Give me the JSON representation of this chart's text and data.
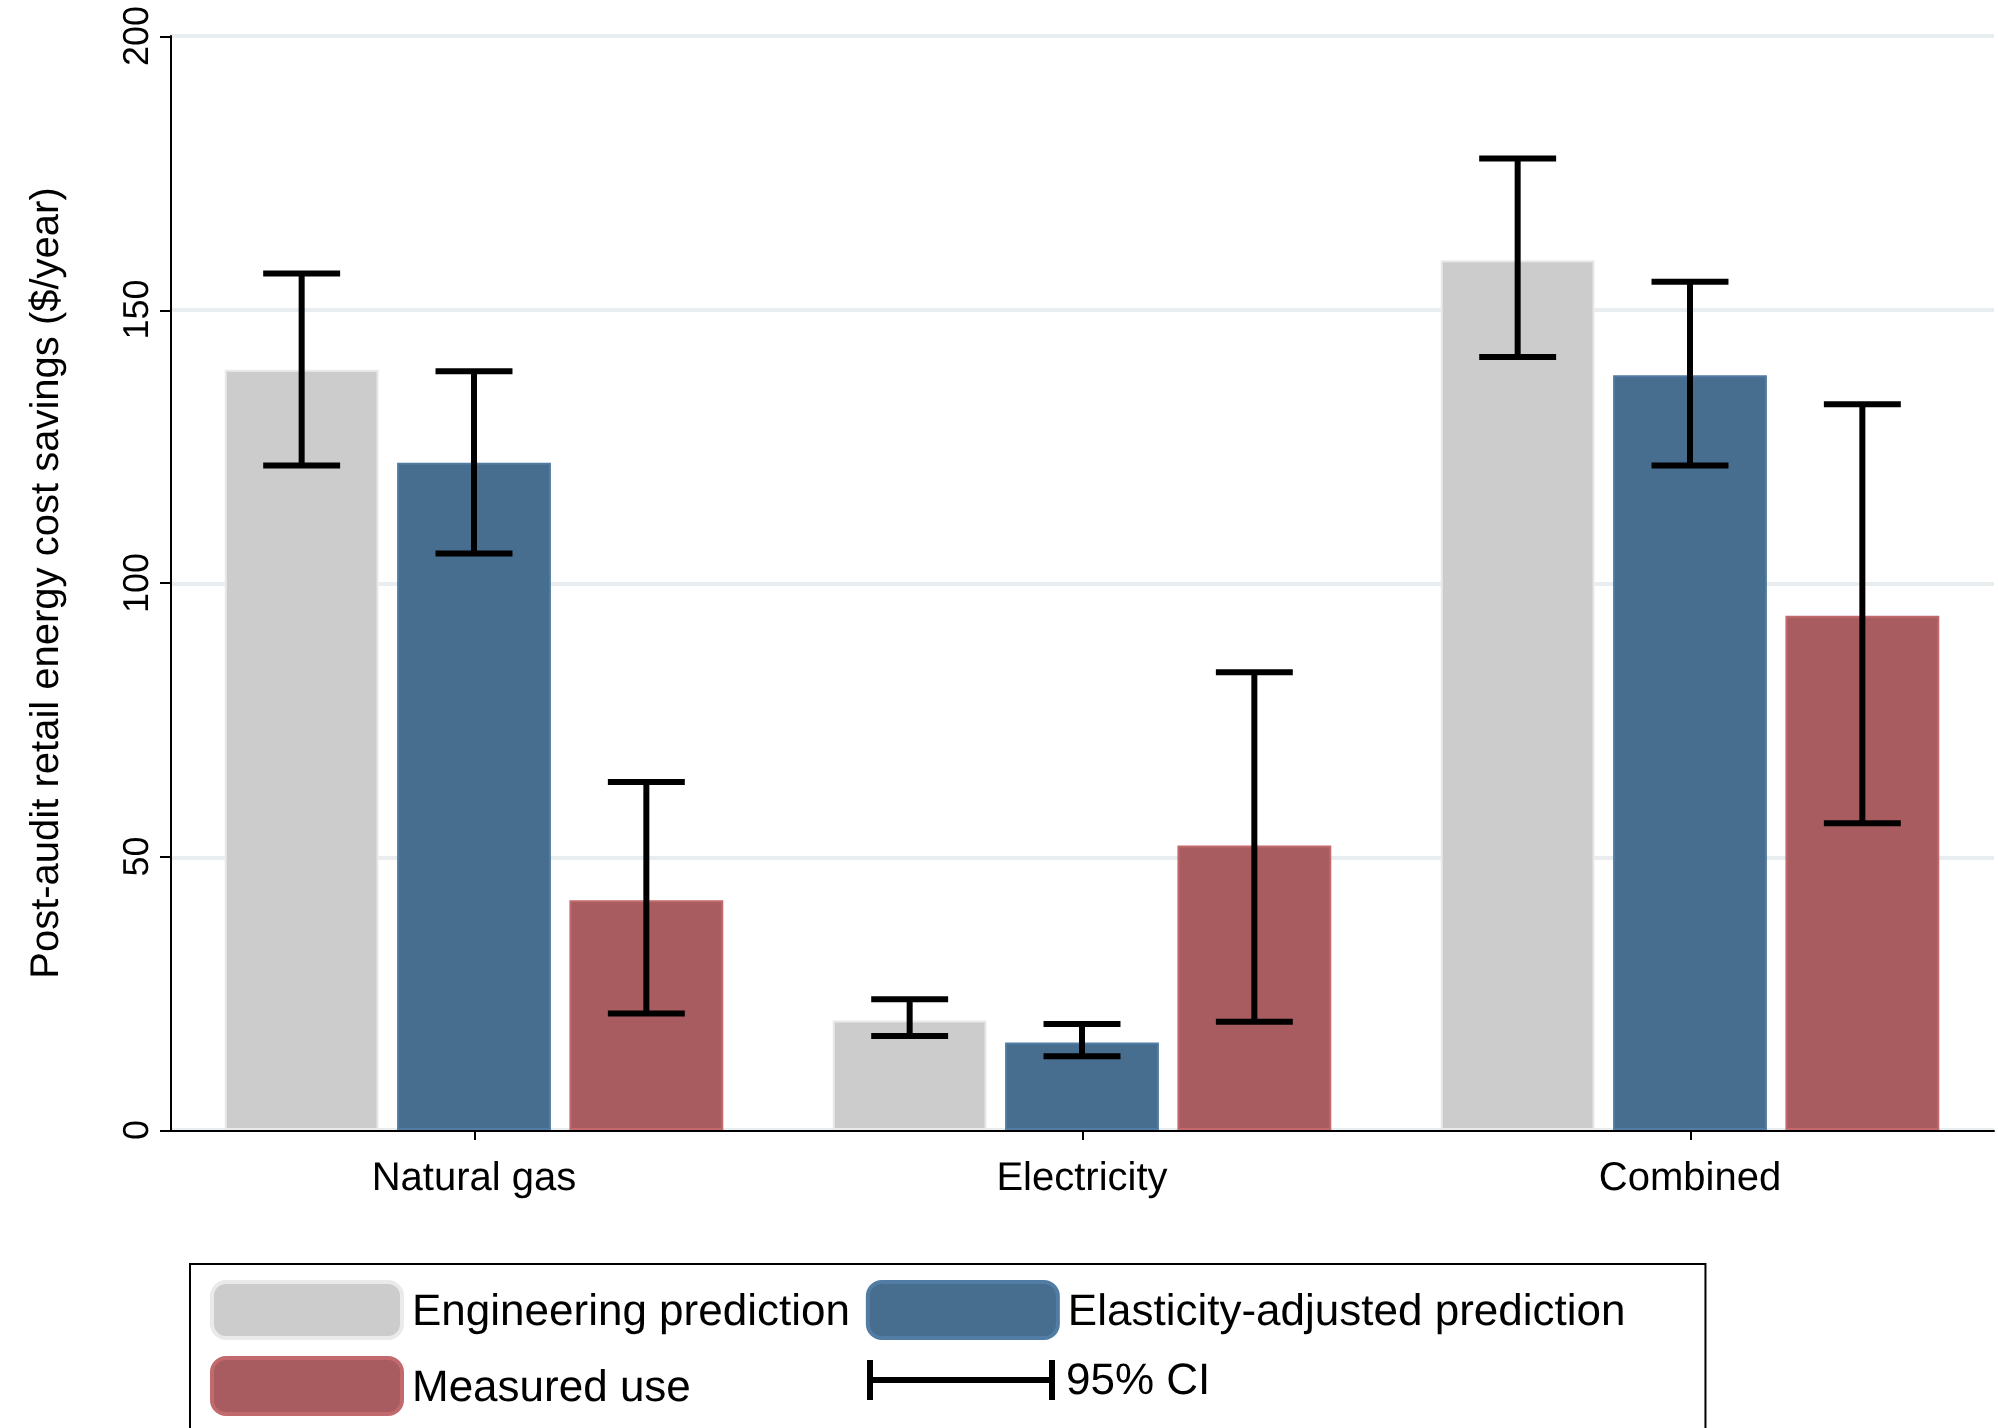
{
  "chart_data": {
    "type": "bar",
    "ylabel": "Post-audit retail energy cost savings ($/year)",
    "categories": [
      "Natural gas",
      "Electricity",
      "Combined"
    ],
    "series": [
      {
        "name": "Engineering prediction",
        "color": "#cccccc",
        "values": [
          139,
          20,
          159
        ],
        "errors": [
          [
            121.5,
            156.6
          ],
          [
            17.2,
            23.9
          ],
          [
            141.3,
            177.6
          ]
        ]
      },
      {
        "name": "Elasticity-adjusted prediction",
        "color": "#476d8f",
        "values": [
          122,
          16,
          138
        ],
        "errors": [
          [
            105.4,
            138.7
          ],
          [
            13.5,
            19.4
          ],
          [
            121.5,
            155.1
          ]
        ]
      },
      {
        "name": "Measured use",
        "color": "#a85c5f",
        "values": [
          42,
          52,
          94
        ],
        "errors": [
          [
            21.3,
            63.6
          ],
          [
            19.8,
            83.7
          ],
          [
            56.1,
            132.7
          ]
        ]
      }
    ],
    "annotations": [
      "95% CI"
    ],
    "ylim": [
      0,
      200
    ],
    "yticks": [
      0,
      50,
      100,
      150,
      200
    ],
    "grid": "y",
    "legend": "bottom"
  }
}
